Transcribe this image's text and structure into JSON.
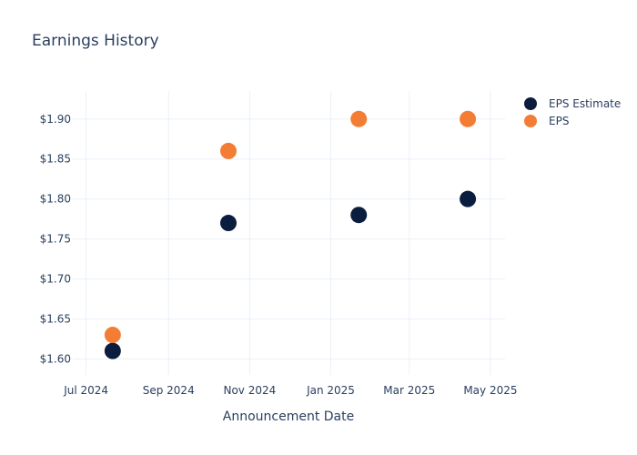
{
  "chart_data": {
    "type": "scatter",
    "title": "Earnings History",
    "xlabel": "Announcement Date",
    "ylabel": "",
    "x_ticks": [
      "Jul 2024",
      "Sep 2024",
      "Nov 2024",
      "Jan 2025",
      "Mar 2025",
      "May 2025"
    ],
    "x_tick_dates": [
      "2024-07-01",
      "2024-09-01",
      "2024-11-01",
      "2025-01-01",
      "2025-03-01",
      "2025-05-01"
    ],
    "y_ticks": [
      "$1.60",
      "$1.65",
      "$1.70",
      "$1.75",
      "$1.80",
      "$1.85",
      "$1.90"
    ],
    "y_tick_values": [
      1.6,
      1.65,
      1.7,
      1.75,
      1.8,
      1.85,
      1.9
    ],
    "ylim": [
      1.58,
      1.935
    ],
    "xlim": [
      "2024-06-21",
      "2025-05-12"
    ],
    "x": [
      "2024-07-21",
      "2024-10-16",
      "2025-01-22",
      "2025-04-14"
    ],
    "series": [
      {
        "name": "EPS Estimate",
        "values": [
          1.61,
          1.77,
          1.78,
          1.8
        ],
        "color": "#0b1d3f"
      },
      {
        "name": "EPS",
        "values": [
          1.63,
          1.86,
          1.9,
          1.9
        ],
        "color": "#f47d35"
      }
    ],
    "legend_position": "top-right",
    "grid": true
  }
}
